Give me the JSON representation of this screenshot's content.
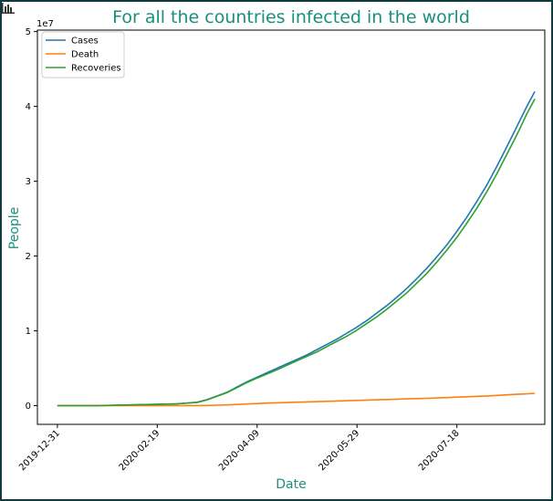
{
  "toolbar": {
    "icon": "bar-chart-icon"
  },
  "colors": {
    "title": "#1a8f7d",
    "axis_label": "#1a8f7d",
    "cases": "#1f77b4",
    "death": "#ff7f0e",
    "recoveries": "#2ca02c",
    "frame": "#0f3b3f"
  },
  "chart_data": {
    "type": "line",
    "title": "For all the countries infected in the world",
    "xlabel": "Date",
    "ylabel": "People",
    "y_offset_label": "1e7",
    "grid": false,
    "legend_position": "top-left",
    "x_ticks": [
      "2019-12-31",
      "2020-02-19",
      "2020-04-09",
      "2020-05-29",
      "2020-07-18"
    ],
    "y_ticks": [
      "0",
      "1",
      "2",
      "3",
      "4",
      "5"
    ],
    "ylim": [
      -0.25,
      5.02
    ],
    "xlim": [
      "2019-12-21",
      "2020-08-31"
    ],
    "x": [
      "2019-12-31",
      "2020-01-10",
      "2020-01-20",
      "2020-01-30",
      "2020-02-09",
      "2020-02-19",
      "2020-02-29",
      "2020-03-10",
      "2020-03-15",
      "2020-03-20",
      "2020-03-25",
      "2020-03-30",
      "2020-04-04",
      "2020-04-09",
      "2020-04-14",
      "2020-04-19",
      "2020-04-24",
      "2020-04-29",
      "2020-05-04",
      "2020-05-09",
      "2020-05-14",
      "2020-05-19",
      "2020-05-24",
      "2020-05-29",
      "2020-06-03",
      "2020-06-08",
      "2020-06-13",
      "2020-06-18",
      "2020-06-23",
      "2020-06-28",
      "2020-07-03",
      "2020-07-08",
      "2020-07-13",
      "2020-07-18",
      "2020-07-23",
      "2020-07-28",
      "2020-08-02",
      "2020-08-07",
      "2020-08-12",
      "2020-08-17",
      "2020-08-22",
      "2020-08-26"
    ],
    "series": [
      {
        "name": "Cases",
        "values": [
          0.0,
          0.0,
          0.0,
          0.005,
          0.012,
          0.017,
          0.025,
          0.045,
          0.08,
          0.13,
          0.18,
          0.25,
          0.32,
          0.38,
          0.44,
          0.5,
          0.56,
          0.62,
          0.68,
          0.75,
          0.82,
          0.89,
          0.97,
          1.05,
          1.14,
          1.24,
          1.34,
          1.45,
          1.57,
          1.7,
          1.84,
          1.99,
          2.15,
          2.33,
          2.52,
          2.73,
          2.95,
          3.2,
          3.46,
          3.73,
          4.0,
          4.2
        ]
      },
      {
        "name": "Death",
        "values": [
          0.0,
          0.0,
          0.0,
          0.0001,
          0.0003,
          0.0005,
          0.0008,
          0.0015,
          0.003,
          0.006,
          0.01,
          0.016,
          0.022,
          0.028,
          0.034,
          0.038,
          0.042,
          0.046,
          0.05,
          0.054,
          0.058,
          0.062,
          0.066,
          0.07,
          0.074,
          0.078,
          0.082,
          0.086,
          0.09,
          0.094,
          0.098,
          0.103,
          0.108,
          0.113,
          0.118,
          0.124,
          0.13,
          0.137,
          0.144,
          0.151,
          0.158,
          0.165
        ]
      },
      {
        "name": "Recoveries",
        "values": [
          0.0,
          0.0,
          0.0,
          0.005,
          0.012,
          0.017,
          0.025,
          0.044,
          0.078,
          0.127,
          0.176,
          0.242,
          0.31,
          0.37,
          0.425,
          0.48,
          0.54,
          0.6,
          0.66,
          0.72,
          0.79,
          0.86,
          0.93,
          1.01,
          1.1,
          1.19,
          1.29,
          1.4,
          1.51,
          1.64,
          1.77,
          1.92,
          2.08,
          2.25,
          2.44,
          2.64,
          2.86,
          3.1,
          3.36,
          3.62,
          3.9,
          4.1
        ]
      }
    ]
  }
}
